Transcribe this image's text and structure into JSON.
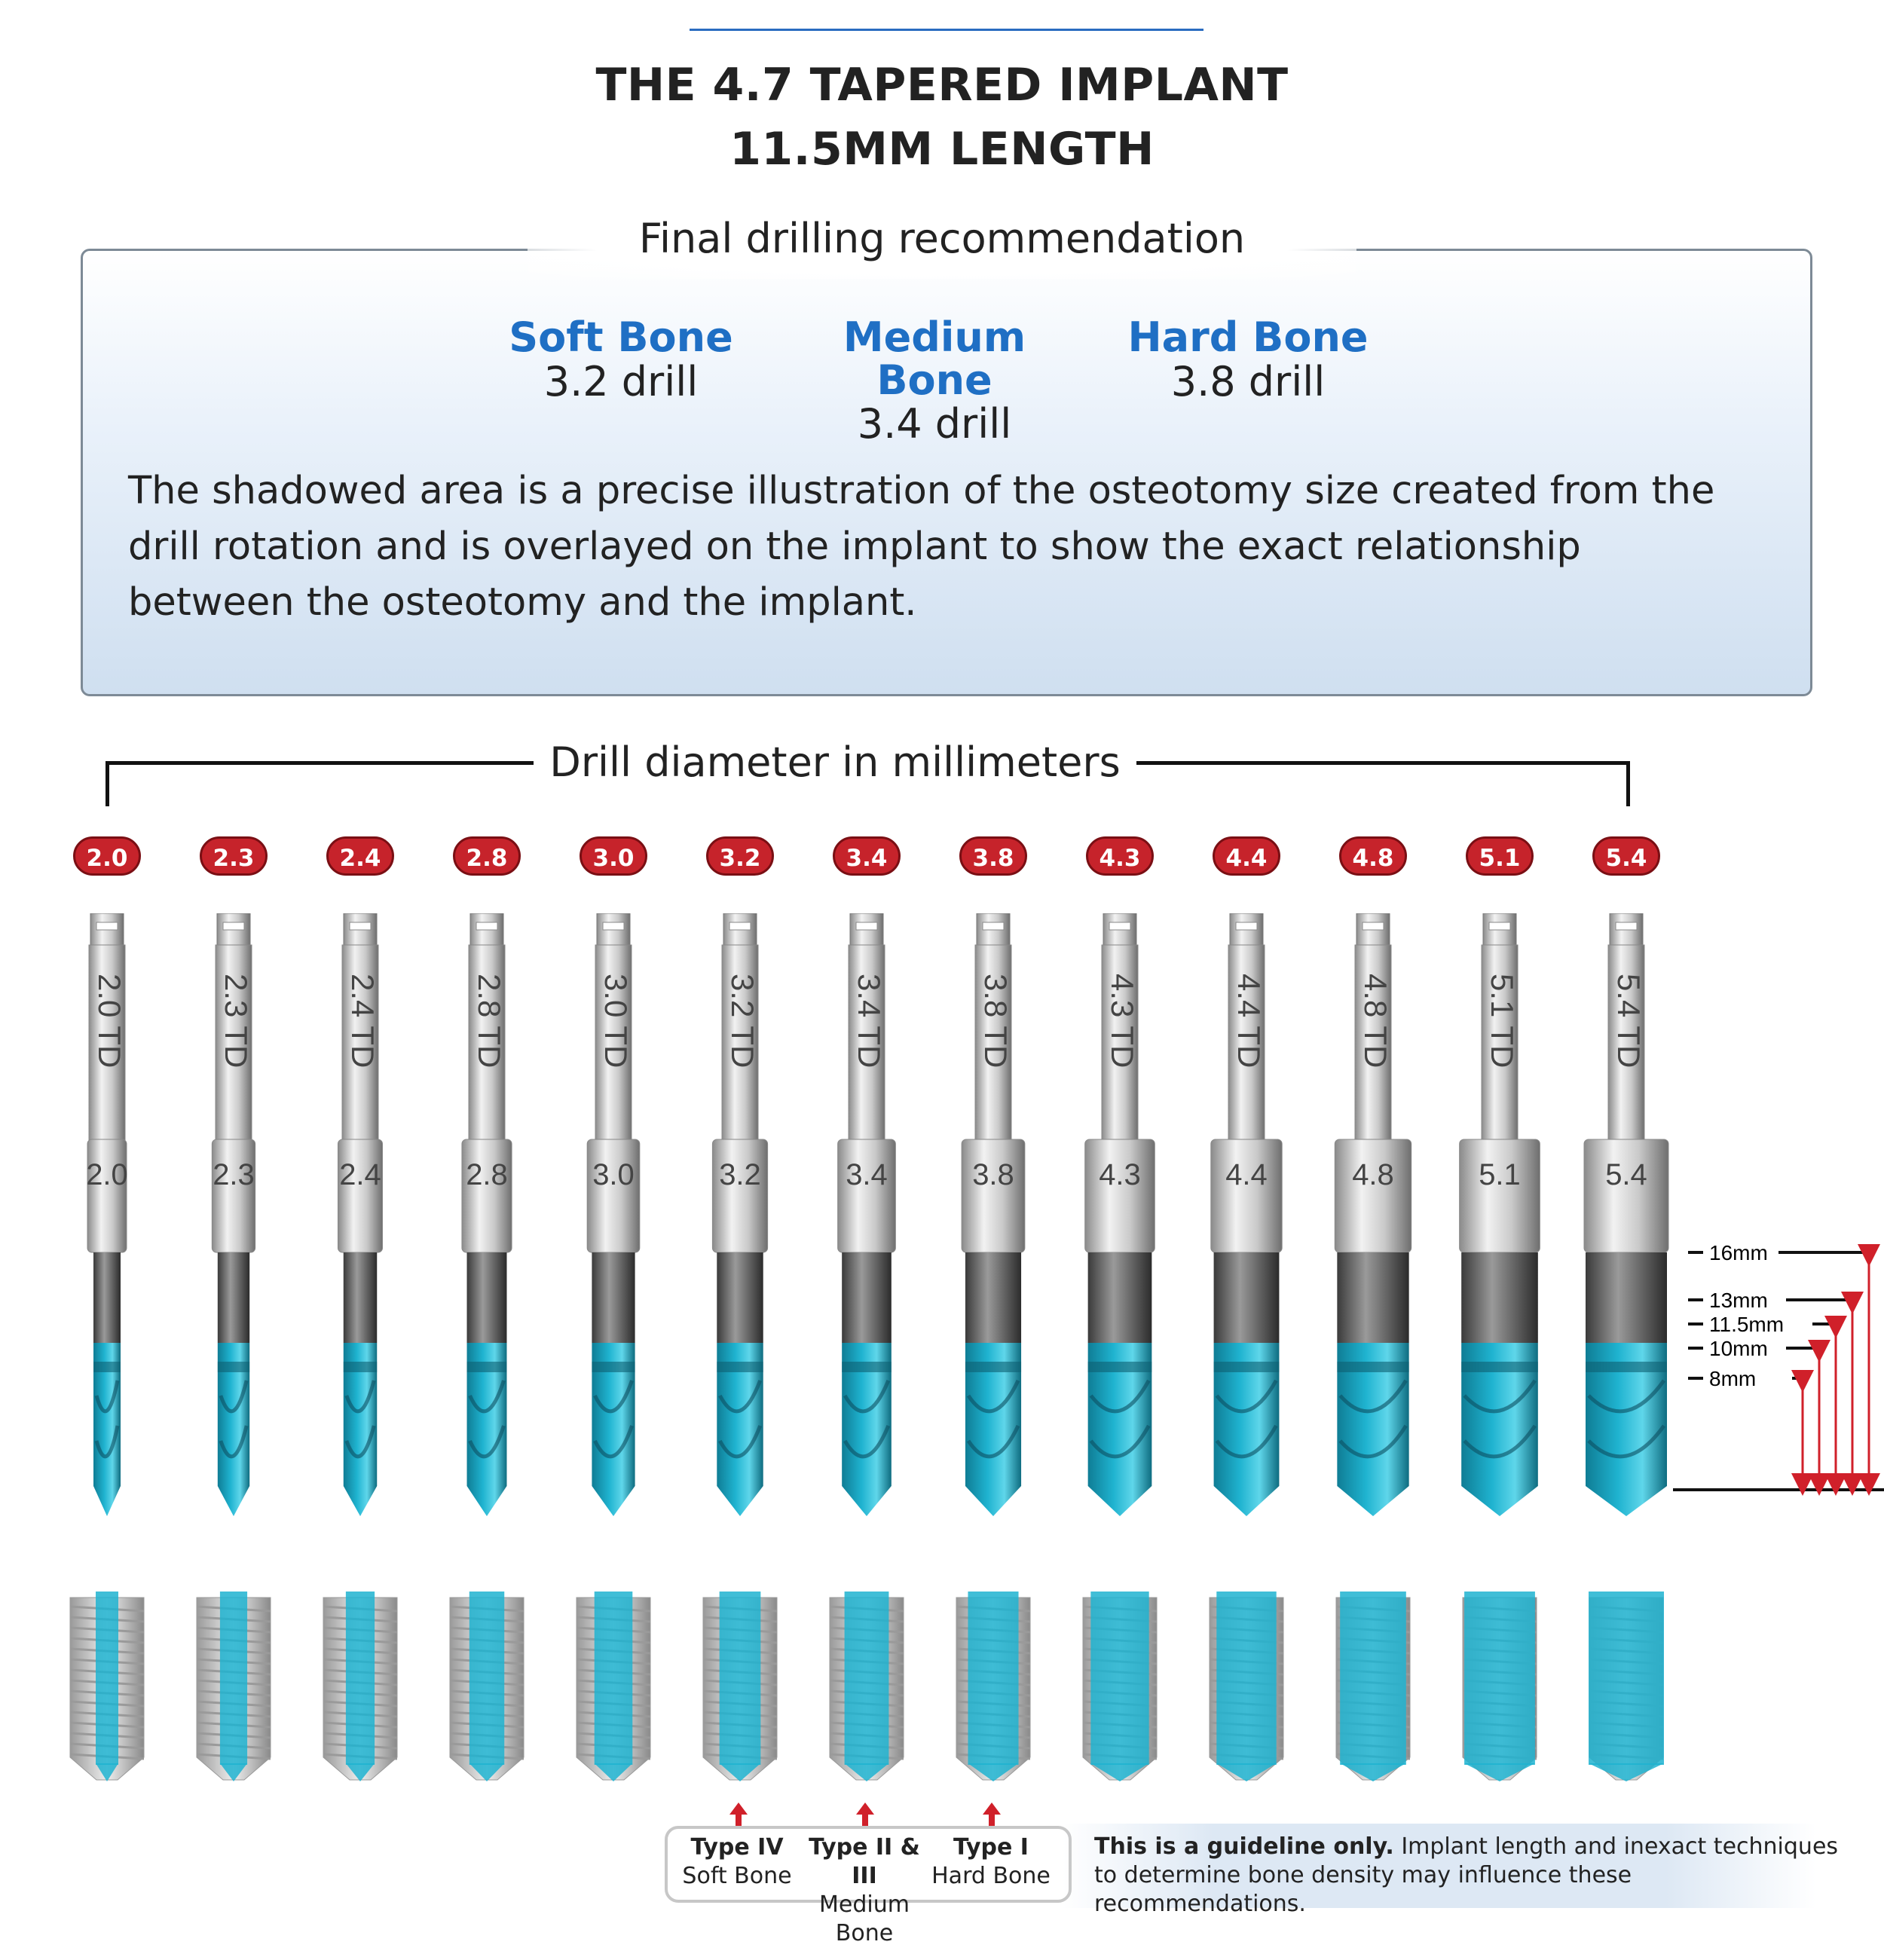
{
  "title": {
    "line1": "THE 4.7 TAPERED IMPLANT",
    "line2": "11.5MM LENGTH"
  },
  "recommendation": {
    "heading": "Final drilling recommendation",
    "bones": [
      {
        "name": "Soft Bone",
        "drill": "3.2 drill"
      },
      {
        "name": "Medium Bone",
        "drill": "3.4 drill"
      },
      {
        "name": "Hard Bone",
        "drill": "3.8 drill"
      }
    ],
    "description": "The shadowed area is a precise illustration of the osteotomy size created from the drill rotation and is overlayed on the implant to show the exact relationship between the osteotomy and the implant."
  },
  "drill_section": {
    "label": "Drill diameter in millimeters",
    "drills": [
      {
        "size": "2.0",
        "shank": "2.0 TD"
      },
      {
        "size": "2.3",
        "shank": "2.3 TD"
      },
      {
        "size": "2.4",
        "shank": "2.4 TD"
      },
      {
        "size": "2.8",
        "shank": "2.8 TD"
      },
      {
        "size": "3.0",
        "shank": "3.0 TD"
      },
      {
        "size": "3.2",
        "shank": "3.2 TD"
      },
      {
        "size": "3.4",
        "shank": "3.4 TD"
      },
      {
        "size": "3.8",
        "shank": "3.8 TD"
      },
      {
        "size": "4.3",
        "shank": "4.3 TD"
      },
      {
        "size": "4.4",
        "shank": "4.4 TD"
      },
      {
        "size": "4.8",
        "shank": "4.8 TD"
      },
      {
        "size": "5.1",
        "shank": "5.1 TD"
      },
      {
        "size": "5.4",
        "shank": "5.4 TD"
      }
    ],
    "length_marks": [
      "16mm",
      "13mm",
      "11.5mm",
      "10mm",
      "8mm"
    ]
  },
  "bone_types": [
    {
      "type": "Type IV",
      "bone": "Soft Bone"
    },
    {
      "type": "Type II & III",
      "bone": "Medium Bone"
    },
    {
      "type": "Type I",
      "bone": "Hard Bone"
    }
  ],
  "guideline": {
    "bold": "This is a guideline only.",
    "text": " Implant length and inexact techniques to determine bone density may influence these recommendations."
  },
  "colors": {
    "accent_blue": "#1f6fc4",
    "badge_red": "#c6232b",
    "drill_teal": "#1fb3d0",
    "arrow_red": "#d0202a"
  }
}
